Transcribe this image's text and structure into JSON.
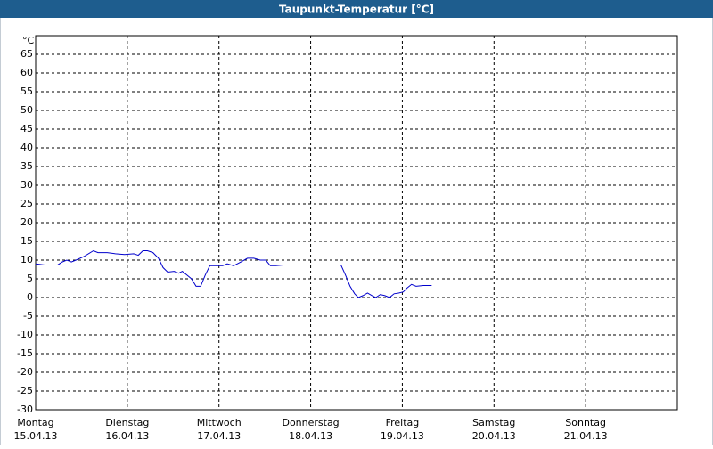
{
  "chart_data": {
    "type": "line",
    "title": "Taupunkt-Temperatur [°C]",
    "y_unit": "°C",
    "xlim": [
      0,
      7
    ],
    "xticks": [
      {
        "value": 0,
        "label": "Montag"
      },
      {
        "value": 1,
        "label": "Dienstag"
      },
      {
        "value": 2,
        "label": "Mittwoch"
      },
      {
        "value": 3,
        "label": "Donnerstag"
      },
      {
        "value": 4,
        "label": "Freitag"
      },
      {
        "value": 5,
        "label": "Samstag"
      },
      {
        "value": 6,
        "label": "Sonntag"
      }
    ],
    "xtick_dates": [
      "15.04.13",
      "16.04.13",
      "17.04.13",
      "18.04.13",
      "19.04.13",
      "20.04.13",
      "21.04.13"
    ],
    "ylim": [
      -30,
      70
    ],
    "yticks": [
      -30,
      -25,
      -20,
      -15,
      -10,
      -5,
      0,
      5,
      10,
      15,
      20,
      25,
      30,
      35,
      40,
      45,
      50,
      55,
      60,
      65
    ],
    "grid": true,
    "series": [
      {
        "color": "#0000cc",
        "x": [
          0,
          0.1,
          0.24,
          0.29,
          0.34,
          0.39,
          0.44,
          0.53,
          0.63,
          0.68,
          0.78,
          0.87,
          0.97,
          1.07,
          1.12,
          1.17,
          1.22,
          1.28,
          1.34,
          1.39,
          1.44,
          1.51,
          1.56,
          1.6,
          1.65,
          1.7,
          1.75,
          1.8,
          1.85,
          1.9,
          1.99,
          2.04,
          2.09,
          2.16,
          2.24,
          2.31,
          2.38,
          2.45,
          2.51,
          2.56,
          2.62,
          2.7,
          3.0,
          3.33,
          3.38,
          3.43,
          3.48,
          3.52,
          3.57,
          3.62,
          3.67,
          3.71,
          3.76,
          3.81,
          3.86,
          3.91,
          3.96,
          4.01,
          4.05,
          4.1,
          4.15,
          4.23,
          4.32
        ],
        "values": [
          9,
          8.7,
          8.7,
          9.5,
          10,
          9.5,
          10,
          11,
          12.5,
          12,
          12,
          11.7,
          11.5,
          11.7,
          11.3,
          12.5,
          12.5,
          12,
          10.5,
          8,
          6.8,
          7,
          6.5,
          7,
          6,
          5,
          3,
          3,
          6,
          8.5,
          8.5,
          8.5,
          9,
          8.5,
          9.5,
          10.5,
          10.5,
          10,
          10,
          8.5,
          8.5,
          8.7,
          null,
          8.7,
          6,
          3,
          1,
          0,
          0.5,
          1.2,
          0.5,
          0,
          0.8,
          0.5,
          0,
          1,
          1.2,
          1.5,
          2.5,
          3.5,
          3,
          3.2,
          3.2
        ]
      }
    ]
  }
}
